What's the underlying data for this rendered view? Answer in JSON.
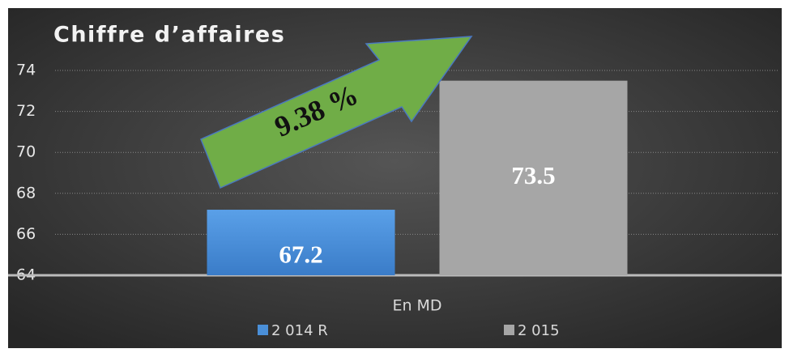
{
  "chart_data": {
    "type": "bar",
    "title": "Chiffre d’affaires",
    "categories": [
      "En MD"
    ],
    "series": [
      {
        "name": "2 014 R",
        "color": "#4a8fd8",
        "values": [
          67.2
        ]
      },
      {
        "name": "2 015",
        "color": "#a6a6a6",
        "values": [
          73.5
        ]
      }
    ],
    "ylim": [
      64,
      74
    ],
    "yticks": [
      64,
      66,
      68,
      70,
      72,
      74
    ],
    "grid": true,
    "legend": "bottom",
    "annotation": "9.38 %",
    "annotation_color": "#70ad47"
  }
}
